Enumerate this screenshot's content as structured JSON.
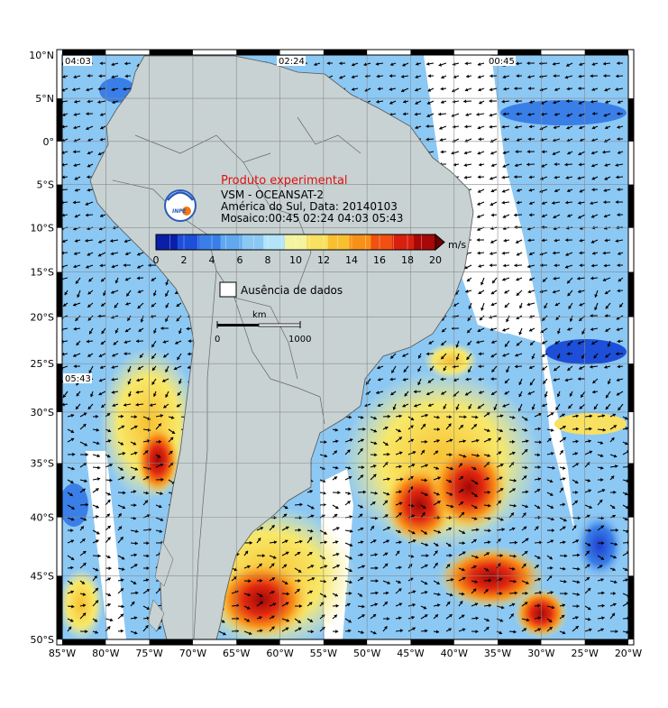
{
  "map": {
    "lat_ticks": [
      "10°N",
      "5°N",
      "0°",
      "5°S",
      "10°S",
      "15°S",
      "20°S",
      "25°S",
      "30°S",
      "35°S",
      "40°S",
      "45°S",
      "50°S"
    ],
    "lon_ticks": [
      "85°W",
      "80°W",
      "75°W",
      "70°W",
      "65°W",
      "60°W",
      "55°W",
      "50°W",
      "45°W",
      "40°W",
      "35°W",
      "30°W",
      "25°W",
      "20°W"
    ],
    "pass_times": [
      {
        "name": "pass-time-0403",
        "text": "04:03"
      },
      {
        "name": "pass-time-0224",
        "text": "02:24"
      },
      {
        "name": "pass-time-0045",
        "text": "00:45"
      },
      {
        "name": "pass-time-0543",
        "text": "05:43"
      }
    ]
  },
  "legend": {
    "experimental": "Produto experimental",
    "line1": "VSM - OCEANSAT-2",
    "line2": "América do Sul, Data: 20140103",
    "line3": "Mosaico:00:45 02:24 04:03 05:43",
    "unit": "m/s",
    "ticks": [
      "0",
      "2",
      "4",
      "6",
      "8",
      "10",
      "12",
      "14",
      "16",
      "18",
      "20"
    ],
    "colors": [
      "#0a1fa8",
      "#1d4fd8",
      "#3a7fe8",
      "#62a8f0",
      "#8cc8f4",
      "#b4e4f8",
      "#f4f4a0",
      "#f8e060",
      "#f8c030",
      "#f89018",
      "#f05010",
      "#d82010",
      "#a80808"
    ],
    "no_data": "Ausência de dados",
    "scale_unit": "km",
    "scale_start": "0",
    "scale_end": "1000",
    "logo": "INPE"
  },
  "colors": {
    "land": "#c8d2d2",
    "ocean_grid": "#8a8a8a",
    "frame_dark": "#000000",
    "frame_light": "#ffffff"
  }
}
